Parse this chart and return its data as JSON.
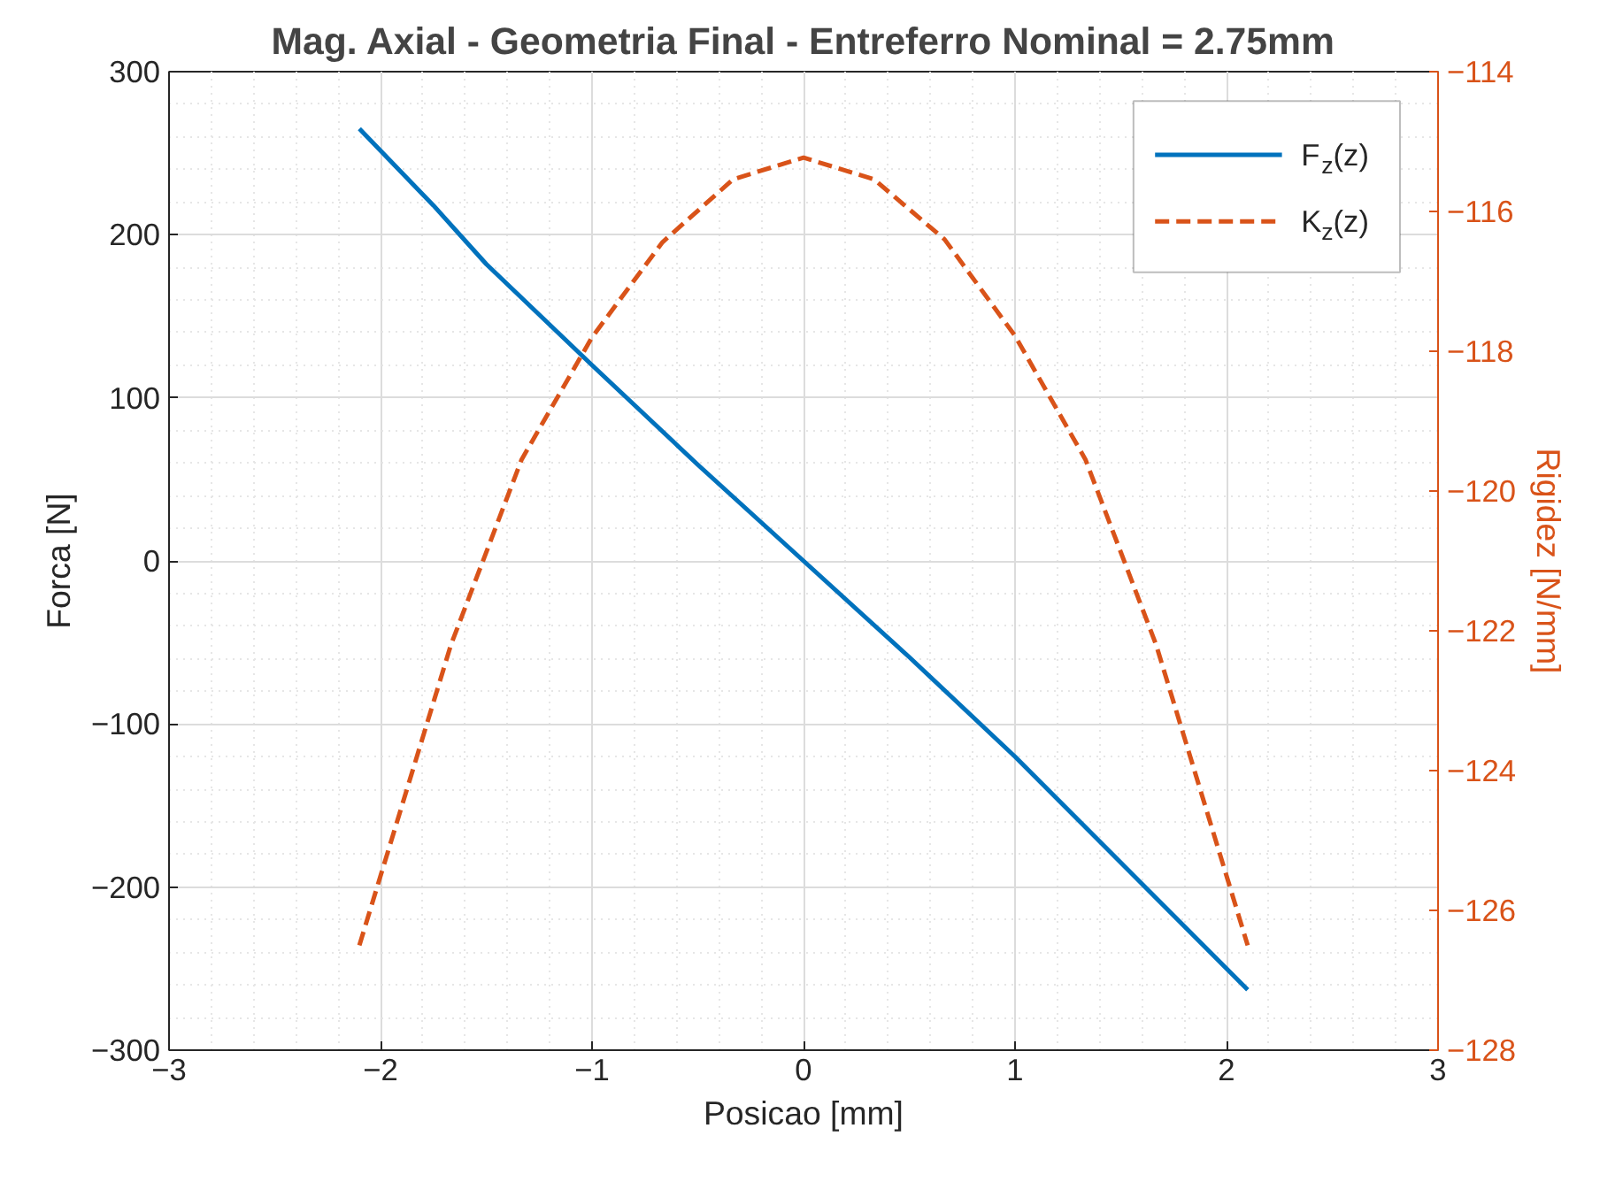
{
  "chart_data": {
    "type": "line",
    "title": "Mag. Axial - Geometria Final - Entreferro Nominal = 2.75mm",
    "xlabel": "Posicao [mm]",
    "ylabel": "Forca [N]",
    "y2label": "Rigidez [N/mm]",
    "xlim": [
      -3,
      3
    ],
    "xticks": [
      -3,
      -2,
      -1,
      0,
      1,
      2,
      3
    ],
    "ylim": [
      -300,
      300
    ],
    "yticks": [
      -300,
      -200,
      -100,
      0,
      100,
      200,
      300
    ],
    "y2lim": [
      -128,
      -114
    ],
    "y2ticks": [
      -128,
      -126,
      -124,
      -122,
      -120,
      -118,
      -116,
      -114
    ],
    "grid": true,
    "legend": "top right",
    "series": [
      {
        "name": "F$_{z}$(z)",
        "color": "#0072bd",
        "line_style": "solid",
        "x": [
          -2.1,
          -1.75,
          -1.5,
          -1,
          -0.5,
          0,
          0.5,
          1,
          1.5,
          2.1
        ],
        "values": [
          265,
          218,
          182,
          120,
          59,
          0,
          -59,
          -120,
          -185,
          -263
        ]
      },
      {
        "name": "K$_{z}$(z)",
        "color": "#d95319",
        "line_style": "dashed",
        "axis": "y2",
        "x": [
          -2.1,
          -1.667,
          -1.333,
          -1,
          -0.667,
          -0.333,
          0,
          0.333,
          0.667,
          1,
          1.333,
          1.667,
          2.1
        ],
        "values": [
          -126.5,
          -122.2,
          -119.55,
          -117.8,
          -116.44,
          -115.54,
          -115.23,
          -115.54,
          -116.4,
          -117.78,
          -119.55,
          -122.2,
          -126.5
        ]
      }
    ]
  }
}
